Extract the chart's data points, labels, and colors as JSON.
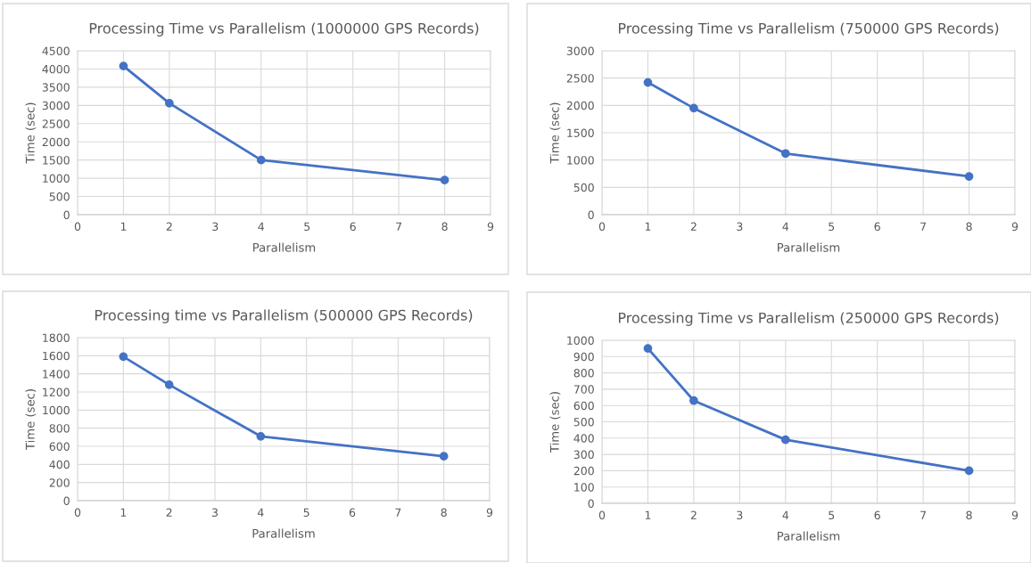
{
  "chart_data": [
    {
      "type": "line",
      "title": "Processing Time vs Parallelism (1000000 GPS Records)",
      "xlabel": "Parallelism",
      "ylabel": "Time (sec)",
      "x": [
        1,
        2,
        4,
        8
      ],
      "values": [
        4080,
        3060,
        1500,
        950
      ],
      "color": "#4472c4",
      "marker": "circle",
      "xlim": [
        0,
        9
      ],
      "xticks": [
        0,
        1,
        2,
        3,
        4,
        5,
        6,
        7,
        8,
        9
      ],
      "ylim": [
        0,
        4500
      ],
      "yticks": [
        0,
        500,
        1000,
        1500,
        2000,
        2500,
        3000,
        3500,
        4000,
        4500
      ],
      "grid": true
    },
    {
      "type": "line",
      "title": "Processing Time vs Parallelism (750000 GPS Records)",
      "xlabel": "Parallelism",
      "ylabel": "Time (sec)",
      "x": [
        1,
        2,
        4,
        8
      ],
      "values": [
        2420,
        1950,
        1120,
        700
      ],
      "color": "#4472c4",
      "marker": "circle",
      "xlim": [
        0,
        9
      ],
      "xticks": [
        0,
        1,
        2,
        3,
        4,
        5,
        6,
        7,
        8,
        9
      ],
      "ylim": [
        0,
        3000
      ],
      "yticks": [
        0,
        500,
        1000,
        1500,
        2000,
        2500,
        3000
      ],
      "grid": true
    },
    {
      "type": "line",
      "title": "Processing time vs Parallelism (500000 GPS Records)",
      "xlabel": "Parallelism",
      "ylabel": "Time (sec)",
      "x": [
        1,
        2,
        4,
        8
      ],
      "values": [
        1590,
        1280,
        710,
        490
      ],
      "color": "#4472c4",
      "marker": "circle",
      "xlim": [
        0,
        9
      ],
      "xticks": [
        0,
        1,
        2,
        3,
        4,
        5,
        6,
        7,
        8,
        9
      ],
      "ylim": [
        0,
        1800
      ],
      "yticks": [
        0,
        200,
        400,
        600,
        800,
        1000,
        1200,
        1400,
        1600,
        1800
      ],
      "grid": true
    },
    {
      "type": "line",
      "title": "Processing Time vs Parallelism (250000 GPS Records)",
      "xlabel": "Parallelism",
      "ylabel": "Time (sec)",
      "x": [
        1,
        2,
        4,
        8
      ],
      "values": [
        950,
        630,
        390,
        200
      ],
      "color": "#4472c4",
      "marker": "circle",
      "xlim": [
        0,
        9
      ],
      "xticks": [
        0,
        1,
        2,
        3,
        4,
        5,
        6,
        7,
        8,
        9
      ],
      "ylim": [
        0,
        1000
      ],
      "yticks": [
        0,
        100,
        200,
        300,
        400,
        500,
        600,
        700,
        800,
        900,
        1000
      ],
      "grid": true
    }
  ]
}
